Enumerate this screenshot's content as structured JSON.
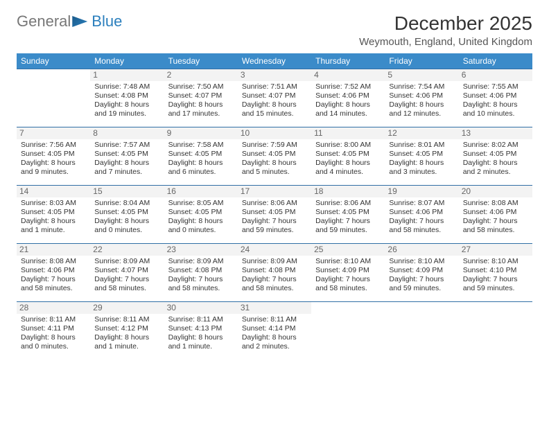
{
  "logo": {
    "part1": "General",
    "part2": "Blue"
  },
  "header": {
    "month_title": "December 2025",
    "location": "Weymouth, England, United Kingdom"
  },
  "calendar": {
    "type": "table",
    "header_bg": "#3b8bc9",
    "header_fg": "#ffffff",
    "rule_color": "#2f6ea5",
    "daynum_bg": "#f3f3f3",
    "background_color": "#ffffff",
    "columns": [
      "Sunday",
      "Monday",
      "Tuesday",
      "Wednesday",
      "Thursday",
      "Friday",
      "Saturday"
    ],
    "rows": [
      [
        null,
        {
          "n": "1",
          "sr": "Sunrise: 7:48 AM",
          "ss": "Sunset: 4:08 PM",
          "dl": "Daylight: 8 hours and 19 minutes."
        },
        {
          "n": "2",
          "sr": "Sunrise: 7:50 AM",
          "ss": "Sunset: 4:07 PM",
          "dl": "Daylight: 8 hours and 17 minutes."
        },
        {
          "n": "3",
          "sr": "Sunrise: 7:51 AM",
          "ss": "Sunset: 4:07 PM",
          "dl": "Daylight: 8 hours and 15 minutes."
        },
        {
          "n": "4",
          "sr": "Sunrise: 7:52 AM",
          "ss": "Sunset: 4:06 PM",
          "dl": "Daylight: 8 hours and 14 minutes."
        },
        {
          "n": "5",
          "sr": "Sunrise: 7:54 AM",
          "ss": "Sunset: 4:06 PM",
          "dl": "Daylight: 8 hours and 12 minutes."
        },
        {
          "n": "6",
          "sr": "Sunrise: 7:55 AM",
          "ss": "Sunset: 4:06 PM",
          "dl": "Daylight: 8 hours and 10 minutes."
        }
      ],
      [
        {
          "n": "7",
          "sr": "Sunrise: 7:56 AM",
          "ss": "Sunset: 4:05 PM",
          "dl": "Daylight: 8 hours and 9 minutes."
        },
        {
          "n": "8",
          "sr": "Sunrise: 7:57 AM",
          "ss": "Sunset: 4:05 PM",
          "dl": "Daylight: 8 hours and 7 minutes."
        },
        {
          "n": "9",
          "sr": "Sunrise: 7:58 AM",
          "ss": "Sunset: 4:05 PM",
          "dl": "Daylight: 8 hours and 6 minutes."
        },
        {
          "n": "10",
          "sr": "Sunrise: 7:59 AM",
          "ss": "Sunset: 4:05 PM",
          "dl": "Daylight: 8 hours and 5 minutes."
        },
        {
          "n": "11",
          "sr": "Sunrise: 8:00 AM",
          "ss": "Sunset: 4:05 PM",
          "dl": "Daylight: 8 hours and 4 minutes."
        },
        {
          "n": "12",
          "sr": "Sunrise: 8:01 AM",
          "ss": "Sunset: 4:05 PM",
          "dl": "Daylight: 8 hours and 3 minutes."
        },
        {
          "n": "13",
          "sr": "Sunrise: 8:02 AM",
          "ss": "Sunset: 4:05 PM",
          "dl": "Daylight: 8 hours and 2 minutes."
        }
      ],
      [
        {
          "n": "14",
          "sr": "Sunrise: 8:03 AM",
          "ss": "Sunset: 4:05 PM",
          "dl": "Daylight: 8 hours and 1 minute."
        },
        {
          "n": "15",
          "sr": "Sunrise: 8:04 AM",
          "ss": "Sunset: 4:05 PM",
          "dl": "Daylight: 8 hours and 0 minutes."
        },
        {
          "n": "16",
          "sr": "Sunrise: 8:05 AM",
          "ss": "Sunset: 4:05 PM",
          "dl": "Daylight: 8 hours and 0 minutes."
        },
        {
          "n": "17",
          "sr": "Sunrise: 8:06 AM",
          "ss": "Sunset: 4:05 PM",
          "dl": "Daylight: 7 hours and 59 minutes."
        },
        {
          "n": "18",
          "sr": "Sunrise: 8:06 AM",
          "ss": "Sunset: 4:05 PM",
          "dl": "Daylight: 7 hours and 59 minutes."
        },
        {
          "n": "19",
          "sr": "Sunrise: 8:07 AM",
          "ss": "Sunset: 4:06 PM",
          "dl": "Daylight: 7 hours and 58 minutes."
        },
        {
          "n": "20",
          "sr": "Sunrise: 8:08 AM",
          "ss": "Sunset: 4:06 PM",
          "dl": "Daylight: 7 hours and 58 minutes."
        }
      ],
      [
        {
          "n": "21",
          "sr": "Sunrise: 8:08 AM",
          "ss": "Sunset: 4:06 PM",
          "dl": "Daylight: 7 hours and 58 minutes."
        },
        {
          "n": "22",
          "sr": "Sunrise: 8:09 AM",
          "ss": "Sunset: 4:07 PM",
          "dl": "Daylight: 7 hours and 58 minutes."
        },
        {
          "n": "23",
          "sr": "Sunrise: 8:09 AM",
          "ss": "Sunset: 4:08 PM",
          "dl": "Daylight: 7 hours and 58 minutes."
        },
        {
          "n": "24",
          "sr": "Sunrise: 8:09 AM",
          "ss": "Sunset: 4:08 PM",
          "dl": "Daylight: 7 hours and 58 minutes."
        },
        {
          "n": "25",
          "sr": "Sunrise: 8:10 AM",
          "ss": "Sunset: 4:09 PM",
          "dl": "Daylight: 7 hours and 58 minutes."
        },
        {
          "n": "26",
          "sr": "Sunrise: 8:10 AM",
          "ss": "Sunset: 4:09 PM",
          "dl": "Daylight: 7 hours and 59 minutes."
        },
        {
          "n": "27",
          "sr": "Sunrise: 8:10 AM",
          "ss": "Sunset: 4:10 PM",
          "dl": "Daylight: 7 hours and 59 minutes."
        }
      ],
      [
        {
          "n": "28",
          "sr": "Sunrise: 8:11 AM",
          "ss": "Sunset: 4:11 PM",
          "dl": "Daylight: 8 hours and 0 minutes."
        },
        {
          "n": "29",
          "sr": "Sunrise: 8:11 AM",
          "ss": "Sunset: 4:12 PM",
          "dl": "Daylight: 8 hours and 1 minute."
        },
        {
          "n": "30",
          "sr": "Sunrise: 8:11 AM",
          "ss": "Sunset: 4:13 PM",
          "dl": "Daylight: 8 hours and 1 minute."
        },
        {
          "n": "31",
          "sr": "Sunrise: 8:11 AM",
          "ss": "Sunset: 4:14 PM",
          "dl": "Daylight: 8 hours and 2 minutes."
        },
        null,
        null,
        null
      ]
    ]
  }
}
